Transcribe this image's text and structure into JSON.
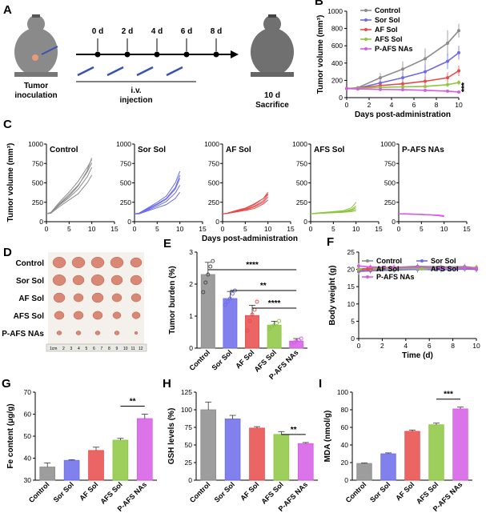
{
  "panels": {
    "A": {
      "letter": "A",
      "days": [
        "0 d",
        "2 d",
        "4 d",
        "6 d",
        "8 d"
      ],
      "inoculation": [
        "Tumor",
        "inoculation"
      ],
      "injection": [
        "i.v.",
        "injection"
      ],
      "end_day": "10 d",
      "sacrifice": "Sacrifice"
    },
    "D": {
      "letter": "D",
      "rows": [
        "Control",
        "Sor Sol",
        "AF Sol",
        "AFS Sol",
        "P-AFS NAs"
      ],
      "ruler_label": "1cm",
      "ruler_ticks": [
        "2",
        "3",
        "4",
        "5",
        "6",
        "7",
        "8",
        "9",
        "10",
        "11",
        "12"
      ]
    }
  },
  "colors": {
    "Control": "#8c8c8c",
    "Sor Sol": "#6b6bea",
    "AF Sol": "#e84a4a",
    "AFS Sol": "#8dc63f",
    "P-AFS NAs": "#d65ce5",
    "tumor": "#d98876"
  },
  "chart_data": [
    {
      "id": "B",
      "letter": "B",
      "type": "line",
      "title": "",
      "xlabel": "Days post-administration",
      "ylabel": "Tumor volume (mm³)",
      "xlim": [
        0,
        10
      ],
      "ylim": [
        0,
        1000
      ],
      "xticks": [
        "0",
        "2",
        "4",
        "6",
        "8",
        "10"
      ],
      "yticks": [
        "0",
        "200",
        "400",
        "600",
        "800",
        "1000"
      ],
      "x": [
        0,
        1,
        3,
        5,
        7,
        9,
        10
      ],
      "series": [
        {
          "name": "Control",
          "values": [
            105,
            115,
            230,
            330,
            450,
            630,
            775
          ],
          "err": [
            5,
            10,
            55,
            90,
            120,
            150,
            80
          ]
        },
        {
          "name": "Sor Sol",
          "values": [
            105,
            110,
            170,
            230,
            300,
            420,
            520
          ],
          "err": [
            5,
            10,
            40,
            60,
            80,
            90,
            80
          ]
        },
        {
          "name": "AF Sol",
          "values": [
            105,
            110,
            140,
            160,
            190,
            230,
            310
          ],
          "err": [
            5,
            8,
            30,
            40,
            50,
            60,
            60
          ]
        },
        {
          "name": "AFS Sol",
          "values": [
            105,
            108,
            118,
            125,
            130,
            150,
            175
          ],
          "err": [
            5,
            8,
            15,
            20,
            25,
            30,
            30
          ]
        },
        {
          "name": "P-AFS NAs",
          "values": [
            105,
            100,
            95,
            92,
            85,
            75,
            65
          ],
          "err": [
            5,
            8,
            10,
            10,
            12,
            10,
            10
          ]
        }
      ],
      "annotation": "***"
    },
    {
      "id": "C",
      "type": "line",
      "ylabel": "Tumor volume (mm³)",
      "xlabel": "Days post-administration",
      "xlim": [
        0,
        15
      ],
      "ylim": [
        0,
        1000
      ],
      "xticks": [
        "0",
        "5",
        "10",
        "15"
      ],
      "yticks": [
        "0",
        "250",
        "500",
        "750",
        "1000"
      ],
      "x": [
        0,
        1,
        3,
        5,
        7,
        9,
        10
      ],
      "subplots": [
        {
          "name": "Control",
          "lines": [
            [
              100,
              110,
              230,
              330,
              460,
              660,
              820
            ],
            [
              100,
              120,
              260,
              380,
              520,
              700,
              800
            ],
            [
              100,
              115,
              220,
              310,
              420,
              580,
              700
            ],
            [
              100,
              120,
              240,
              350,
              470,
              640,
              760
            ],
            [
              100,
              110,
              200,
              280,
              360,
              500,
              600
            ]
          ]
        },
        {
          "name": "Sor Sol",
          "lines": [
            [
              100,
              110,
              180,
              250,
              330,
              500,
              650
            ],
            [
              100,
              105,
              160,
              220,
              290,
              420,
              560
            ],
            [
              100,
              110,
              170,
              230,
              300,
              440,
              600
            ],
            [
              100,
              108,
              150,
              200,
              260,
              370,
              470
            ],
            [
              100,
              100,
              140,
              180,
              220,
              300,
              380
            ]
          ]
        },
        {
          "name": "AF Sol",
          "lines": [
            [
              100,
              110,
              140,
              170,
              220,
              300,
              380
            ],
            [
              100,
              108,
              135,
              160,
              200,
              270,
              350
            ],
            [
              100,
              105,
              130,
              150,
              190,
              250,
              320
            ],
            [
              100,
              110,
              145,
              175,
              230,
              300,
              360
            ],
            [
              100,
              105,
              125,
              145,
              170,
              230,
              280
            ]
          ]
        },
        {
          "name": "AFS Sol",
          "lines": [
            [
              100,
              110,
              120,
              130,
              140,
              180,
              250
            ],
            [
              100,
              105,
              115,
              125,
              130,
              160,
              200
            ],
            [
              100,
              110,
              118,
              120,
              130,
              150,
              180
            ],
            [
              100,
              108,
              112,
              120,
              125,
              140,
              160
            ],
            [
              100,
              105,
              110,
              115,
              120,
              130,
              140
            ]
          ]
        },
        {
          "name": "P-AFS NAs",
          "lines": [
            [
              100,
              102,
              98,
              95,
              90,
              80,
              70
            ],
            [
              100,
              105,
              100,
              96,
              90,
              85,
              78
            ],
            [
              100,
              100,
              95,
              92,
              88,
              78,
              68
            ],
            [
              100,
              103,
              99,
              94,
              89,
              83,
              75
            ],
            [
              100,
              98,
              94,
              90,
              85,
              75,
              65
            ]
          ]
        }
      ]
    },
    {
      "id": "E",
      "letter": "E",
      "type": "bar",
      "ylabel": "Tumor burden (%)",
      "categories": [
        "Control",
        "Sor Sol",
        "AF Sol",
        "AFS Sol",
        "P-AFS NAs"
      ],
      "values": [
        2.3,
        1.55,
        1.02,
        0.72,
        0.22
      ],
      "err": [
        0.38,
        0.22,
        0.32,
        0.12,
        0.08
      ],
      "points": [
        [
          1.75,
          2.05,
          2.3,
          2.55,
          2.72
        ],
        [
          1.35,
          1.45,
          1.55,
          1.7,
          1.8
        ],
        [
          0.55,
          0.85,
          1.05,
          1.2,
          1.45
        ],
        [
          0.6,
          0.68,
          0.72,
          0.78,
          0.85
        ],
        [
          0.15,
          0.18,
          0.22,
          0.26,
          0.3
        ]
      ],
      "ylim": [
        0,
        3
      ],
      "yticks": [
        "0",
        "1",
        "2",
        "3"
      ],
      "sig": [
        {
          "from": 0,
          "to": 4,
          "label": "****"
        },
        {
          "from": 1,
          "to": 4,
          "label": "**"
        },
        {
          "from": 2,
          "to": 4,
          "label": "****"
        }
      ]
    },
    {
      "id": "F",
      "letter": "F",
      "type": "line",
      "xlabel": "Time (d)",
      "ylabel": "Body weight (g)",
      "xlim": [
        0,
        10
      ],
      "ylim": [
        0,
        25
      ],
      "xticks": [
        "0",
        "2",
        "4",
        "6",
        "8",
        "10"
      ],
      "yticks": [
        "0",
        "5",
        "10",
        "15",
        "20",
        "25"
      ],
      "x": [
        0,
        1,
        3,
        5,
        7,
        9,
        10
      ],
      "series": [
        {
          "name": "Control",
          "values": [
            20.1,
            20.3,
            20.6,
            20.9,
            20.7,
            20.8,
            20.5
          ],
          "err": [
            1.0,
            0.9,
            0.8,
            0.8,
            0.7,
            0.8,
            0.8
          ]
        },
        {
          "name": "Sor Sol",
          "values": [
            19.4,
            19.6,
            19.8,
            20.0,
            19.9,
            20.1,
            20.0
          ],
          "err": [
            0.9,
            0.8,
            0.8,
            0.9,
            0.8,
            0.8,
            0.9
          ]
        },
        {
          "name": "AF Sol",
          "values": [
            19.8,
            20.0,
            20.3,
            20.4,
            20.3,
            20.4,
            20.2
          ],
          "err": [
            0.8,
            0.8,
            0.7,
            0.8,
            0.7,
            0.8,
            0.8
          ]
        },
        {
          "name": "AFS Sol",
          "values": [
            20.0,
            20.2,
            20.1,
            20.3,
            20.2,
            20.4,
            20.6
          ],
          "err": [
            0.8,
            0.8,
            0.8,
            0.7,
            0.8,
            0.8,
            0.8
          ]
        },
        {
          "name": "P-AFS NAs",
          "values": [
            21.0,
            20.7,
            20.5,
            20.6,
            20.4,
            20.5,
            20.3
          ],
          "err": [
            0.8,
            0.7,
            0.7,
            0.8,
            0.7,
            0.7,
            0.7
          ]
        }
      ]
    },
    {
      "id": "G",
      "letter": "G",
      "type": "bar",
      "ylabel": "Fe content (μg/g)",
      "categories": [
        "Control",
        "Sor Sol",
        "AF Sol",
        "AFS Sol",
        "P-AFS NAs"
      ],
      "values": [
        36,
        39,
        43.5,
        48.2,
        58
      ],
      "err": [
        1.8,
        0.3,
        1.5,
        0.8,
        2.0
      ],
      "ylim": [
        30,
        70
      ],
      "yticks": [
        "30",
        "40",
        "50",
        "60",
        "70"
      ],
      "sig": [
        {
          "from": 3,
          "to": 4,
          "label": "**"
        }
      ]
    },
    {
      "id": "H",
      "letter": "H",
      "type": "bar",
      "ylabel": "GSH levels (%)",
      "categories": [
        "Control",
        "Sor Sol",
        "AF Sol",
        "AFS Sol",
        "P-AFS NAs"
      ],
      "values": [
        100,
        87,
        74,
        65,
        52
      ],
      "err": [
        11,
        5,
        2,
        4,
        1.5
      ],
      "ylim": [
        0,
        125
      ],
      "yticks": [
        "0",
        "25",
        "50",
        "75",
        "100",
        "125"
      ],
      "sig": [
        {
          "from": 3,
          "to": 4,
          "label": "**"
        }
      ]
    },
    {
      "id": "I",
      "letter": "I",
      "type": "bar",
      "ylabel": "MDA (nmol/g)",
      "categories": [
        "Control",
        "Sor Sol",
        "AF Sol",
        "AFS Sol",
        "P-AFS NAs"
      ],
      "values": [
        19,
        30,
        55.5,
        63,
        81
      ],
      "err": [
        0.6,
        1.0,
        1.5,
        1.8,
        2.0
      ],
      "ylim": [
        0,
        100
      ],
      "yticks": [
        "0",
        "20",
        "40",
        "60",
        "80",
        "100"
      ],
      "sig": [
        {
          "from": 3,
          "to": 4,
          "label": "***"
        }
      ]
    }
  ]
}
